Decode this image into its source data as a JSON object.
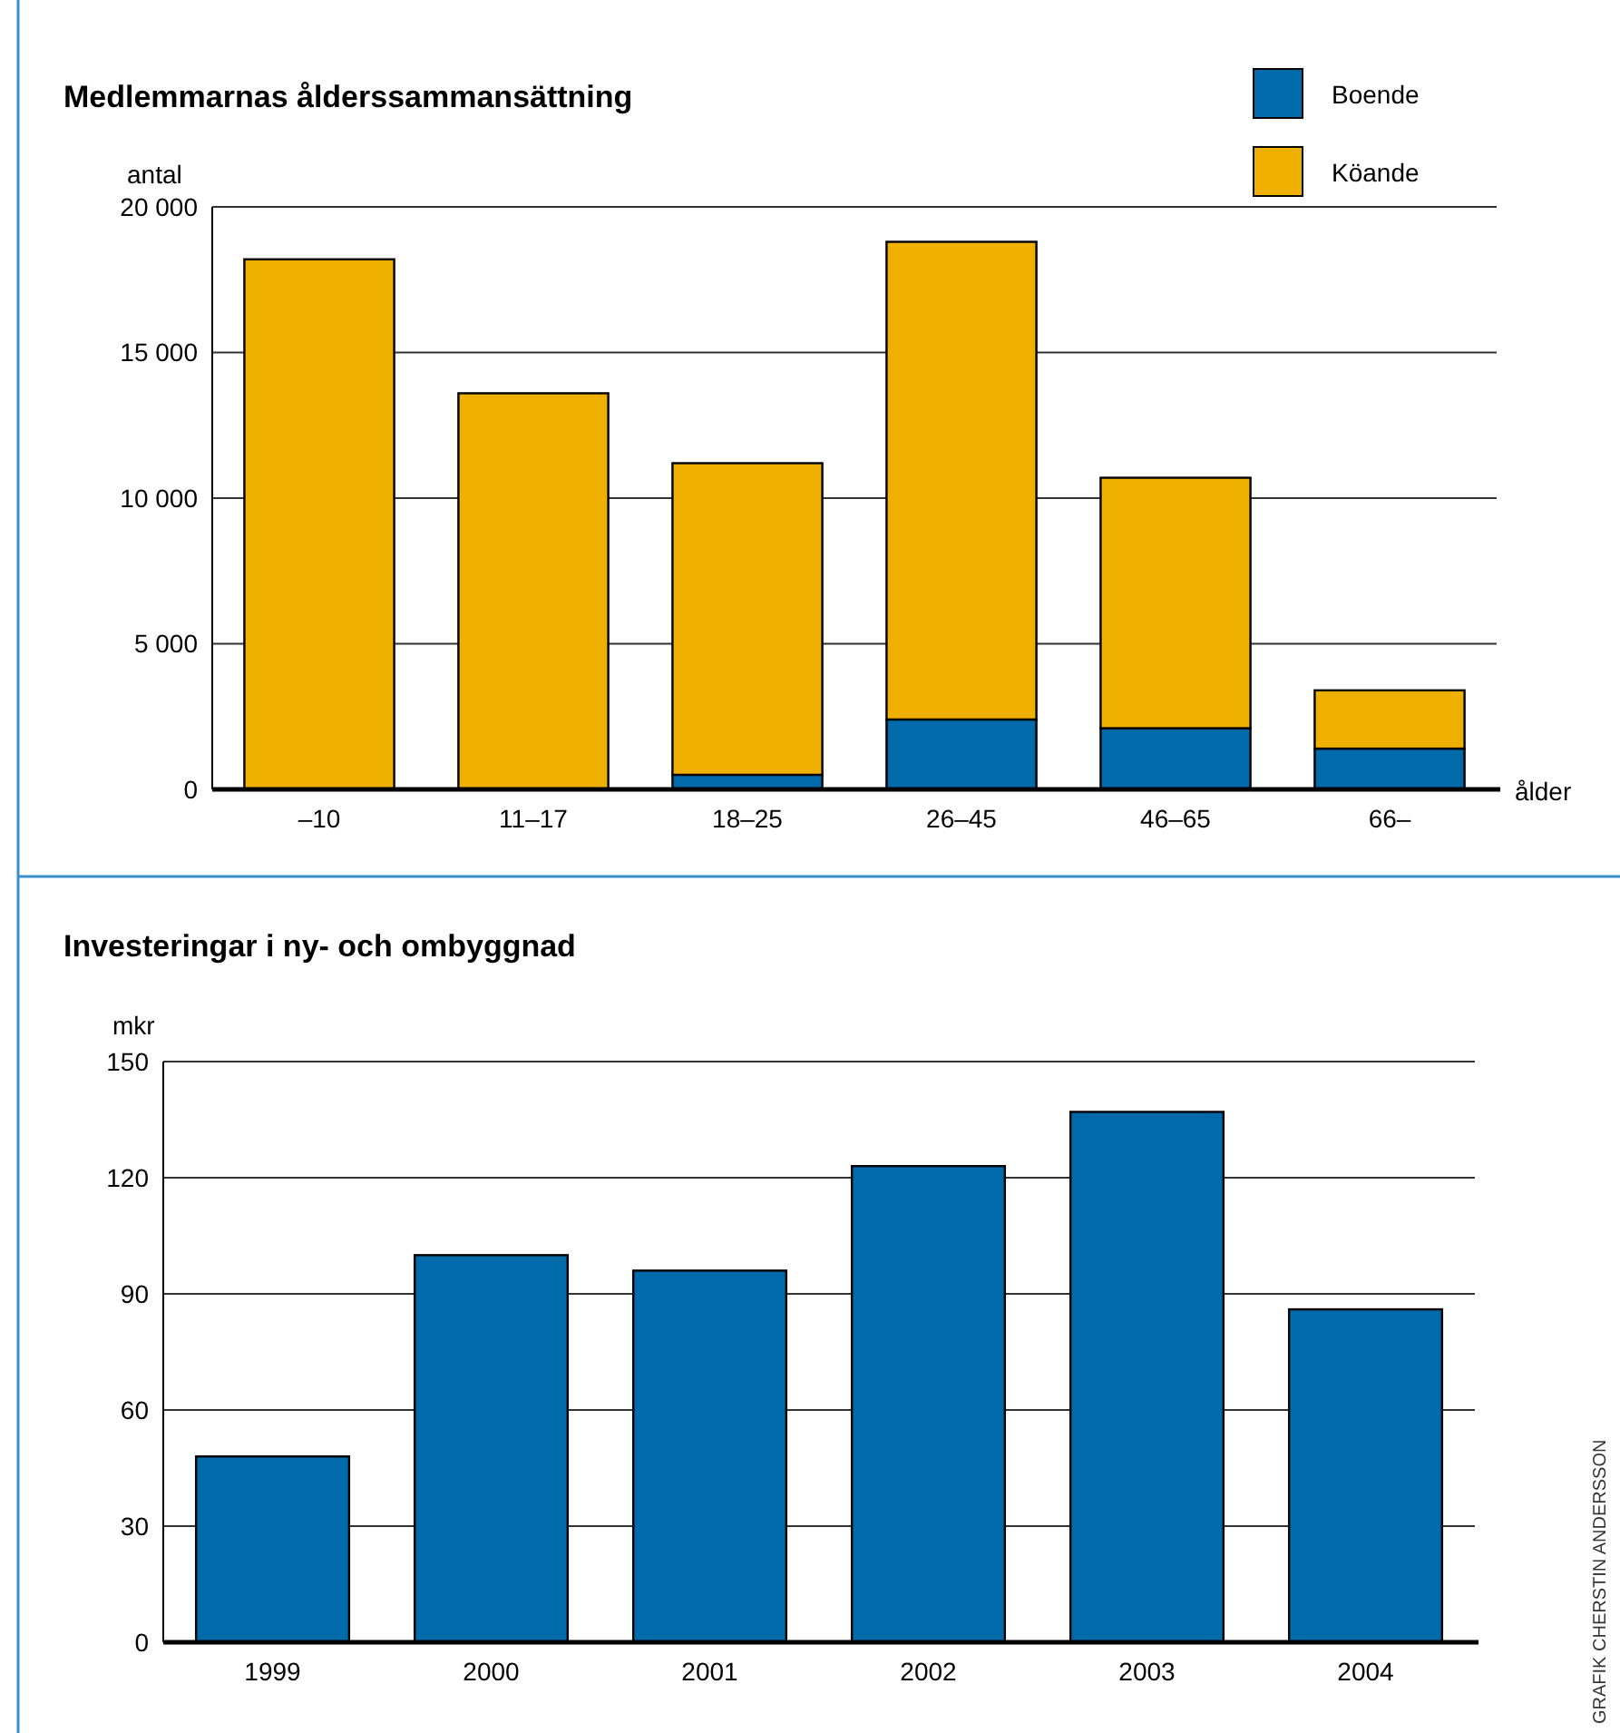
{
  "chart_data": [
    {
      "type": "bar",
      "title": "Medlemmarnas ålderssammansättning",
      "ylabel": "antal",
      "xlabel": "ålder",
      "categories": [
        "–10",
        "11–17",
        "18–25",
        "26–45",
        "46–65",
        "66–"
      ],
      "stacked": true,
      "series": [
        {
          "name": "Boende",
          "color": "#006aab",
          "values": [
            0,
            0,
            500,
            2400,
            2100,
            1400
          ]
        },
        {
          "name": "Köande",
          "color": "#f0b000",
          "values": [
            18200,
            13600,
            10700,
            16400,
            8600,
            2000
          ]
        }
      ],
      "ylim": [
        0,
        20000
      ],
      "yticks": [
        {
          "value": 0,
          "label": "0"
        },
        {
          "value": 5000,
          "label": "5 000"
        },
        {
          "value": 10000,
          "label": "10 000"
        },
        {
          "value": 15000,
          "label": "15 000"
        },
        {
          "value": 20000,
          "label": "20 000"
        }
      ],
      "grid": "y",
      "legend": "top right"
    },
    {
      "type": "bar",
      "title": "Investeringar i ny- och ombyggnad",
      "ylabel": "mkr",
      "categories": [
        "1999",
        "2000",
        "2001",
        "2002",
        "2003",
        "2004"
      ],
      "series": [
        {
          "color": "#006aab",
          "values": [
            48,
            100,
            96,
            123,
            137,
            86
          ]
        }
      ],
      "ylim": [
        0,
        150
      ],
      "yticks": [
        0,
        30,
        60,
        90,
        120,
        150
      ],
      "grid": "y",
      "annotations": [
        "GRAFIK CHERSTIN ANDERSSON"
      ]
    }
  ]
}
